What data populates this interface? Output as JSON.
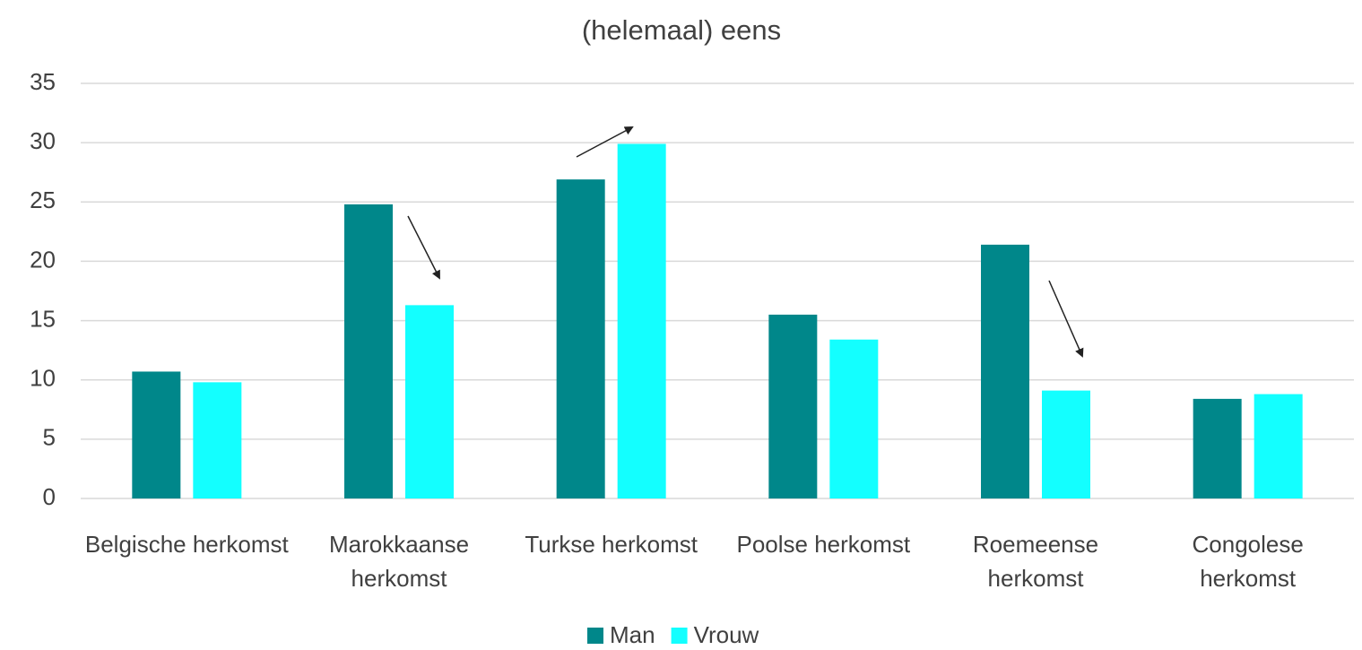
{
  "chart_data": {
    "type": "bar",
    "title": "(helemaal) eens",
    "categories": [
      "Belgische herkomst",
      "Marokkaanse herkomst",
      "Turkse herkomst",
      "Poolse herkomst",
      "Roemeense herkomst",
      "Congolese herkomst"
    ],
    "series": [
      {
        "name": "Man",
        "color": "#00878a",
        "values": [
          10.7,
          24.8,
          26.9,
          15.5,
          21.4,
          8.4
        ]
      },
      {
        "name": "Vrouw",
        "color": "#13ffff",
        "values": [
          9.8,
          16.3,
          29.9,
          13.4,
          9.1,
          8.8
        ]
      }
    ],
    "ylim": [
      0,
      35
    ],
    "yticks": [
      0,
      5,
      10,
      15,
      20,
      25,
      30,
      35
    ],
    "grid": true,
    "legend": "bottom"
  }
}
